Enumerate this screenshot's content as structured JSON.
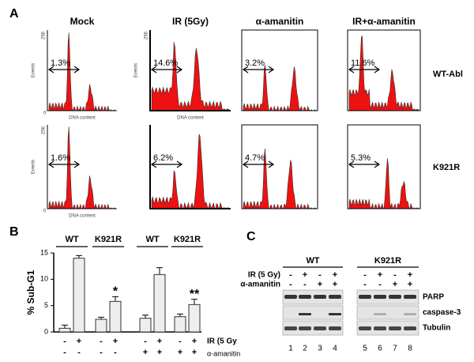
{
  "panel_a": {
    "label": "A",
    "columns": [
      "Mock",
      "IR (5Gy)",
      "α-amanitin",
      "IR+α-amanitin"
    ],
    "rows": [
      "WT-Abl",
      "K921R"
    ],
    "axis_y": "Events",
    "axis_x": "DNA content",
    "tick_top": "256",
    "tick_zero": "0",
    "percentages": [
      [
        "1.3%",
        "14.6%",
        "3.2%",
        "11.6%"
      ],
      [
        "1.6%",
        "6.2%",
        "4.7%",
        "5.3%"
      ]
    ]
  },
  "chart_data": {
    "type": "bar",
    "label": "B",
    "ylabel": "% Sub-G1",
    "groups": [
      "WT",
      "K921R",
      "WT",
      "K921R"
    ],
    "categories": [
      null,
      null,
      null,
      null,
      null,
      null,
      null,
      null
    ],
    "values": [
      0.7,
      14,
      2.4,
      5.8,
      2.6,
      10.9,
      2.9,
      5.2
    ],
    "errors": [
      0.6,
      0.5,
      0.4,
      0.9,
      0.6,
      1.3,
      0.5,
      1.0
    ],
    "color": "#eeeeee",
    "ylim": [
      0,
      15
    ],
    "yticks": [
      0,
      5,
      10,
      15
    ],
    "row_labels": [
      "IR (5 Gy",
      "α-amanitin"
    ],
    "ir_signs": [
      "-",
      "+",
      "-",
      "+",
      "-",
      "+",
      "-",
      "+"
    ],
    "amanitin_signs": [
      "-",
      "-",
      "-",
      "-",
      "+",
      "+",
      "+",
      "+"
    ],
    "annotations": [
      {
        "text": "*",
        "bar": 3
      },
      {
        "text": "**",
        "bar": 7
      }
    ]
  },
  "panel_c": {
    "label": "C",
    "groups": [
      "WT",
      "K921R"
    ],
    "row_labels": [
      "IR (5 Gy)",
      "α-amanitin"
    ],
    "ir_signs": [
      "-",
      "+",
      "-",
      "+",
      "-",
      "+",
      "-",
      "+"
    ],
    "amanitin_signs": [
      "-",
      "-",
      "+",
      "+",
      "-",
      "-",
      "+",
      "+"
    ],
    "blots": [
      "PARP",
      "caspase-3",
      "Tubulin"
    ],
    "lanes": [
      "1",
      "2",
      "3",
      "4",
      "5",
      "6",
      "7",
      "8"
    ]
  }
}
